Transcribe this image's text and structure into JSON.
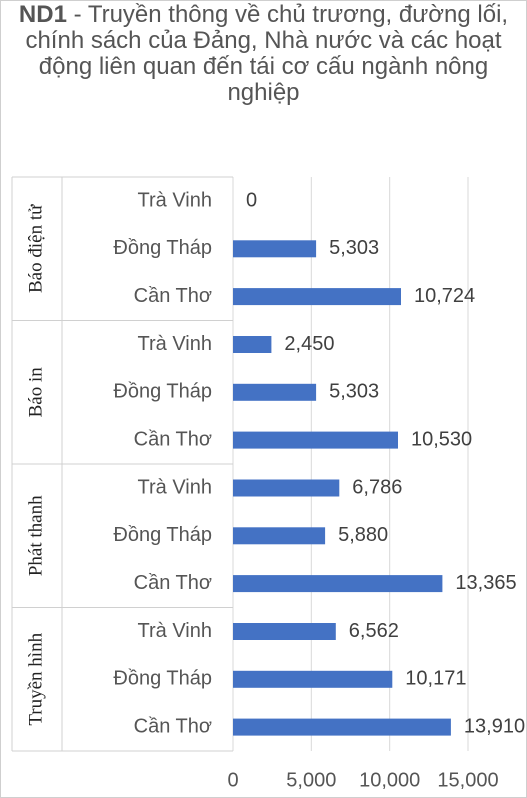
{
  "chart_data": {
    "type": "bar",
    "orientation": "horizontal",
    "title_prefix": "ND1",
    "title": "ND1 - Truyền thông về chủ trương, đường lối, chính sách của Đảng, Nhà nước và các hoạt động liên quan đến tái cơ cấu ngành nông nghiệp",
    "title_rest": " - Truyền thông về chủ trương, đường lối, chính sách của Đảng, Nhà nước và các hoạt động liên quan đến tái cơ cấu ngành nông nghiệp",
    "groups": [
      {
        "name": "Báo điện tử",
        "categories": [
          "Trà Vinh",
          "Đồng Tháp",
          "Cần Thơ"
        ],
        "values": [
          0,
          5303,
          10724
        ],
        "labels": [
          "0",
          "5,303",
          "10,724"
        ]
      },
      {
        "name": "Báo in",
        "categories": [
          "Trà Vinh",
          "Đồng Tháp",
          "Cần Thơ"
        ],
        "values": [
          2450,
          5303,
          10530
        ],
        "labels": [
          "2,450",
          "5,303",
          "10,530"
        ]
      },
      {
        "name": "Phát thanh",
        "categories": [
          "Trà Vinh",
          "Đồng Tháp",
          "Cần Thơ"
        ],
        "values": [
          6786,
          5880,
          13365
        ],
        "labels": [
          "6,786",
          "5,880",
          "13,365"
        ]
      },
      {
        "name": "Truyền hình",
        "categories": [
          "Trà Vinh",
          "Đồng Tháp",
          "Cần Thơ"
        ],
        "values": [
          6562,
          10171,
          13910
        ],
        "labels": [
          "6,562",
          "10,171",
          "13,910"
        ]
      }
    ],
    "xlim": [
      0,
      15000
    ],
    "x_ticks": [
      0,
      5000,
      10000,
      15000
    ],
    "x_tick_labels": [
      "0",
      "5,000",
      "10,000",
      "15,000"
    ],
    "grid": true,
    "legend": "none",
    "bar_color": "#4472C4"
  }
}
